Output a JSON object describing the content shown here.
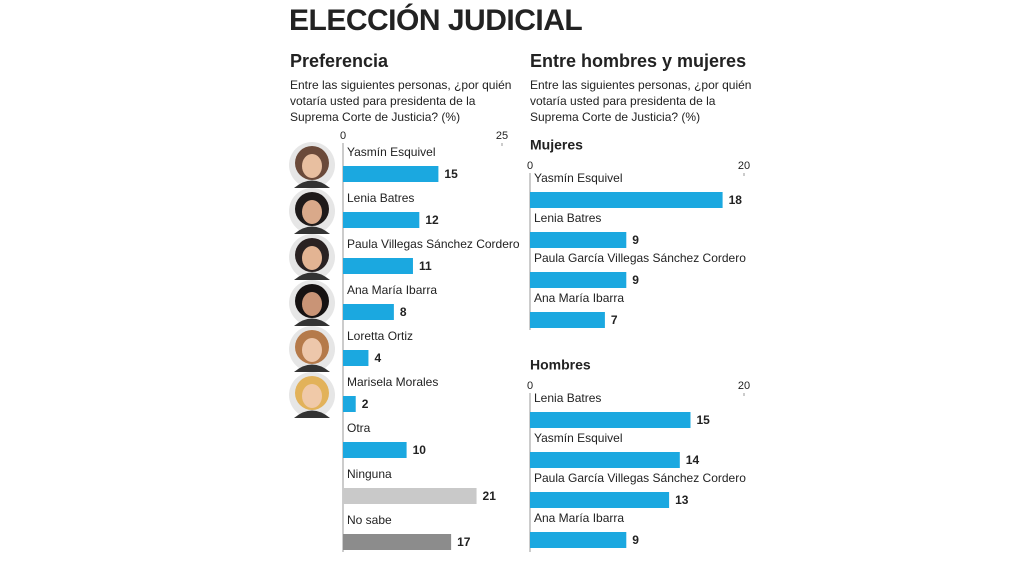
{
  "title": "ELECCIÓN JUDICIAL",
  "right_panel": {
    "title": "Entre hombres y mujeres",
    "question": "Entre las siguientes personas, ¿por quién votaría usted para presidenta de la Suprema Corte de Justicia? (%)"
  },
  "chart_data": [
    {
      "type": "bar",
      "title": "Preferencia",
      "subtitle": "Entre las siguientes personas, ¿por quién votaría usted para presidenta de la Suprema Corte de Justicia? (%)",
      "categories": [
        "Yasmín Esquivel",
        "Lenia Batres",
        "Paula Villegas Sánchez Cordero",
        "Ana María Ibarra",
        "Loretta Ortiz",
        "Marisela Morales",
        "Otra",
        "Ninguna",
        "No sabe"
      ],
      "values": [
        15,
        12,
        11,
        8,
        4,
        2,
        10,
        21,
        17
      ],
      "colors": [
        "#1ba8e0",
        "#1ba8e0",
        "#1ba8e0",
        "#1ba8e0",
        "#1ba8e0",
        "#1ba8e0",
        "#1ba8e0",
        "#c9c9c9",
        "#8c8c8c"
      ],
      "xlim": [
        0,
        25
      ],
      "xticks": [
        0,
        25
      ]
    },
    {
      "type": "bar",
      "title": "Mujeres",
      "categories": [
        "Yasmín Esquivel",
        "Lenia Batres",
        "Paula García Villegas Sánchez Cordero",
        "Ana María Ibarra"
      ],
      "values": [
        18,
        9,
        9,
        7
      ],
      "color": "#1ba8e0",
      "xlim": [
        0,
        20
      ],
      "xticks": [
        0,
        20
      ]
    },
    {
      "type": "bar",
      "title": "Hombres",
      "categories": [
        "Lenia Batres",
        "Yasmín Esquivel",
        "Paula García Villegas Sánchez Cordero",
        "Ana María Ibarra"
      ],
      "values": [
        15,
        14,
        13,
        9
      ],
      "color": "#1ba8e0",
      "xlim": [
        0,
        20
      ],
      "xticks": [
        0,
        20
      ]
    }
  ]
}
